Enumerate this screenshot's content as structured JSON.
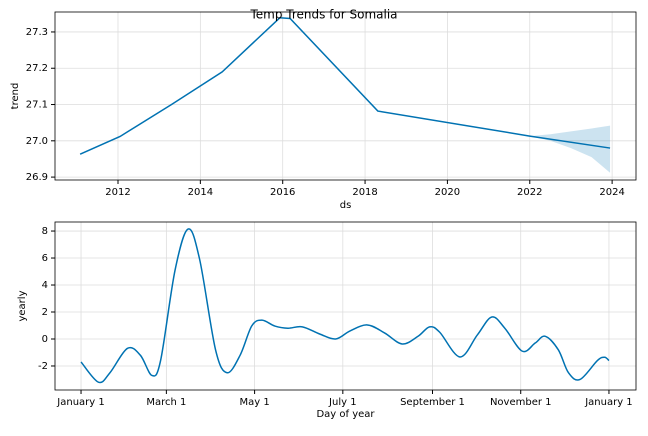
{
  "chart_data": [
    {
      "type": "line",
      "title": "Temp Trends for Somalia",
      "xlabel": "ds",
      "ylabel": "trend",
      "color": "#0072B2",
      "grid": true,
      "x": [
        2011.08,
        2012.05,
        2013.3,
        2014.53,
        2015.93,
        2016.18,
        2018.31,
        2022.0,
        2023.95
      ],
      "values": [
        26.963,
        27.012,
        27.1,
        27.19,
        27.339,
        27.337,
        27.082,
        27.013,
        26.98
      ],
      "band": {
        "x": [
          2022.0,
          2022.5,
          2023.0,
          2023.5,
          2023.95
        ],
        "upper": [
          27.013,
          27.018,
          27.026,
          27.034,
          27.042
        ],
        "lower": [
          27.013,
          27.0,
          26.98,
          26.955,
          26.912
        ]
      },
      "xlim": [
        2010.47,
        2024.58
      ],
      "ylim": [
        26.892,
        27.355
      ],
      "xticks": [
        2012,
        2014,
        2016,
        2018,
        2020,
        2022,
        2024
      ],
      "yticks": [
        26.9,
        {
          "value": 27,
          "label": "27.0"
        },
        27.1,
        27.2,
        27.3
      ]
    },
    {
      "type": "line",
      "xlabel": "Day of year",
      "ylabel": "yearly",
      "color": "#0072B2",
      "grid": true,
      "x": [
        0,
        12,
        20,
        32,
        41,
        49,
        55,
        65,
        74,
        82,
        93,
        101,
        110,
        118,
        125,
        134,
        143,
        153,
        165,
        176,
        186,
        198,
        210,
        222,
        233,
        241,
        248,
        262,
        274,
        284,
        293,
        305,
        314,
        321,
        330,
        337,
        345,
        357,
        362,
        365
      ],
      "values": [
        -1.7,
        -3.2,
        -2.5,
        -0.7,
        -1.2,
        -2.7,
        -1.6,
        5.1,
        8.15,
        5.9,
        -0.8,
        -2.5,
        -1.2,
        0.96,
        1.4,
        0.96,
        0.8,
        0.9,
        0.37,
        0,
        0.6,
        1.04,
        0.44,
        -0.37,
        0.2,
        0.9,
        0.5,
        -1.33,
        0.3,
        1.63,
        0.8,
        -0.9,
        -0.3,
        0.2,
        -0.8,
        -2.5,
        -3.0,
        -1.6,
        -1.35,
        -1.6
      ],
      "xlim": [
        -18,
        383.7
      ],
      "ylim": [
        -3.78,
        8.67
      ],
      "xticks": [
        {
          "value": 0,
          "label": "January 1"
        },
        {
          "value": 59,
          "label": "March 1"
        },
        {
          "value": 120,
          "label": "May 1"
        },
        {
          "value": 181,
          "label": "July 1"
        },
        {
          "value": 243,
          "label": "September 1"
        },
        {
          "value": 304,
          "label": "November 1"
        },
        {
          "value": 365,
          "label": "January 1"
        }
      ],
      "yticks": [
        -2,
        0,
        2,
        4,
        6,
        8
      ]
    }
  ]
}
